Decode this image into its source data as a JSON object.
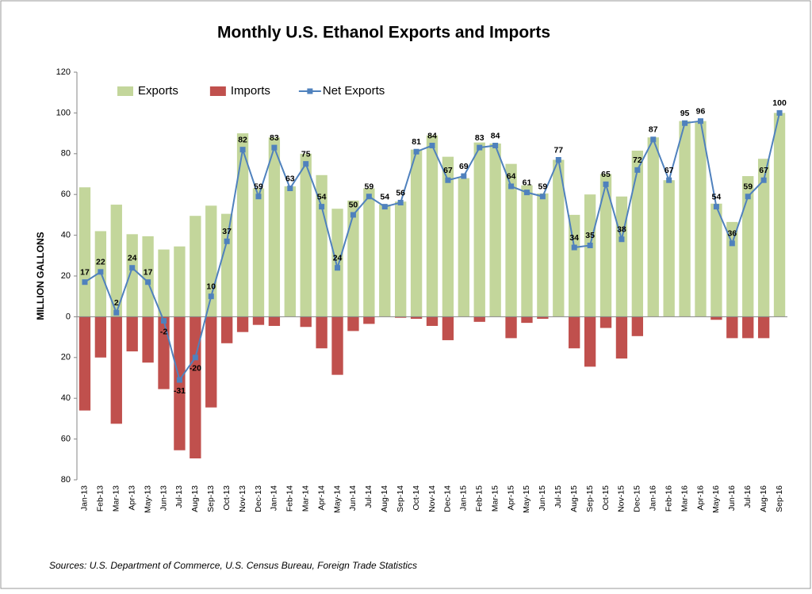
{
  "chart_data": {
    "type": "bar",
    "title": "Monthly U.S. Ethanol Exports and Imports",
    "y_label": "MILLION GALLONS",
    "source": "Sources: U.S. Department of Commerce, U.S. Census Bureau, Foreign Trade Statistics",
    "categories": [
      "Jan-13",
      "Feb-13",
      "Mar-13",
      "Apr-13",
      "May-13",
      "Jun-13",
      "Jul-13",
      "Aug-13",
      "Sep-13",
      "Oct-13",
      "Nov-13",
      "Dec-13",
      "Jan-14",
      "Feb-14",
      "Mar-14",
      "Apr-14",
      "May-14",
      "Jun-14",
      "Jul-14",
      "Aug-14",
      "Sep-14",
      "Oct-14",
      "Nov-14",
      "Dec-14",
      "Jan-15",
      "Feb-15",
      "Mar-15",
      "Apr-15",
      "May-15",
      "Jun-15",
      "Jul-15",
      "Aug-15",
      "Sep-15",
      "Oct-15",
      "Nov-15",
      "Dec-15",
      "Jan-16",
      "Feb-16",
      "Mar-16",
      "Apr-16",
      "May-16",
      "Jun-16",
      "Jul-16",
      "Aug-16",
      "Sep-16"
    ],
    "series": [
      {
        "name": "Exports",
        "type": "bar",
        "color": "#c3d69b",
        "values": [
          63.5,
          42,
          55,
          40.5,
          39.5,
          33,
          34.5,
          49.5,
          54.5,
          50.5,
          90,
          63,
          88,
          64,
          80,
          69.5,
          53,
          57,
          63,
          55,
          56.5,
          82,
          89,
          78.5,
          68,
          85.5,
          85,
          75,
          64.5,
          60.5,
          77,
          50,
          60,
          70,
          59,
          81.5,
          88,
          67,
          96,
          96,
          55.5,
          46.5,
          69,
          77.5,
          100
        ]
      },
      {
        "name": "Imports",
        "type": "bar",
        "color": "#c0504d",
        "values": [
          -46,
          -20,
          -52.5,
          -17,
          -22.5,
          -35.5,
          -65.5,
          -69.5,
          -44.5,
          -13,
          -7.5,
          -4,
          -4.5,
          0,
          -5,
          -15.5,
          -28.5,
          -7,
          -3.5,
          0,
          -0.5,
          -1,
          -4.5,
          -11.5,
          0,
          -2.5,
          0,
          -10.5,
          -3,
          -1,
          0,
          -15.5,
          -24.5,
          -5.5,
          -20.5,
          -9.5,
          0,
          0,
          0,
          0,
          -1.5,
          -10.5,
          -10.5,
          -10.5,
          0
        ]
      },
      {
        "name": "Net Exports",
        "type": "line",
        "color": "#4f81bd",
        "values": [
          17,
          22,
          2,
          24,
          17,
          -2,
          -31,
          -20,
          10,
          37,
          82,
          59,
          83,
          63,
          75,
          54,
          24,
          50,
          59,
          54,
          56,
          81,
          84,
          67,
          69,
          83,
          84,
          64,
          61,
          59,
          77,
          34,
          35,
          65,
          38,
          72,
          87,
          67,
          95,
          96,
          54,
          36,
          59,
          67,
          100
        ]
      }
    ],
    "ylim": [
      -80,
      120
    ],
    "yticks": [
      {
        "value": -80,
        "label": "80"
      },
      {
        "value": -60,
        "label": "60"
      },
      {
        "value": -40,
        "label": "40"
      },
      {
        "value": -20,
        "label": "20"
      },
      0,
      20,
      40,
      60,
      80,
      100,
      120
    ],
    "grid": false,
    "legend": "top"
  }
}
